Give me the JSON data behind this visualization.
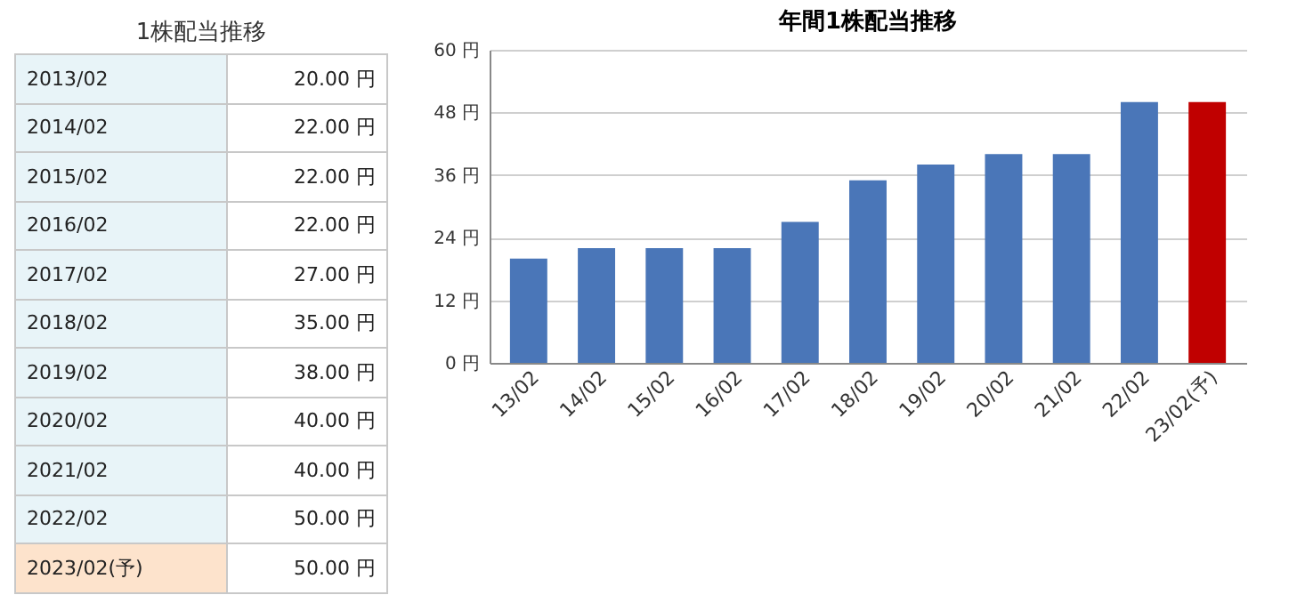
{
  "chart_data": [
    {
      "type": "other",
      "title": "1株配当推移",
      "categories": [
        "2013/02",
        "2014/02",
        "2015/02",
        "2016/02",
        "2017/02",
        "2018/02",
        "2019/02",
        "2020/02",
        "2021/02",
        "2022/02",
        "2023/02(予)"
      ],
      "values": [
        20,
        22,
        22,
        22,
        27,
        35,
        38,
        40,
        40,
        50,
        50
      ],
      "value_labels": [
        "20.00 円",
        "22.00 円",
        "22.00 円",
        "22.00 円",
        "27.00 円",
        "35.00 円",
        "38.00 円",
        "40.00 円",
        "40.00 円",
        "50.00 円",
        "50.00 円"
      ]
    },
    {
      "type": "bar",
      "title": "年間1株配当推移",
      "categories": [
        "13/02",
        "14/02",
        "15/02",
        "16/02",
        "17/02",
        "18/02",
        "19/02",
        "20/02",
        "21/02",
        "22/02",
        "23/02(予)"
      ],
      "values": [
        20,
        22,
        22,
        22,
        27,
        35,
        38,
        40,
        40,
        50,
        50
      ],
      "colors": [
        "#4a76b8",
        "#4a76b8",
        "#4a76b8",
        "#4a76b8",
        "#4a76b8",
        "#4a76b8",
        "#4a76b8",
        "#4a76b8",
        "#4a76b8",
        "#4a76b8",
        "#c00000"
      ],
      "ylim": [
        0,
        60
      ],
      "yticks": [
        {
          "value": 0,
          "label": "0 円"
        },
        {
          "value": 12,
          "label": "12 円"
        },
        {
          "value": 24,
          "label": "24 円"
        },
        {
          "value": 36,
          "label": "36 円"
        },
        {
          "value": 48,
          "label": "48 円"
        },
        {
          "value": 60,
          "label": "60 円"
        }
      ],
      "grid": "y"
    }
  ]
}
